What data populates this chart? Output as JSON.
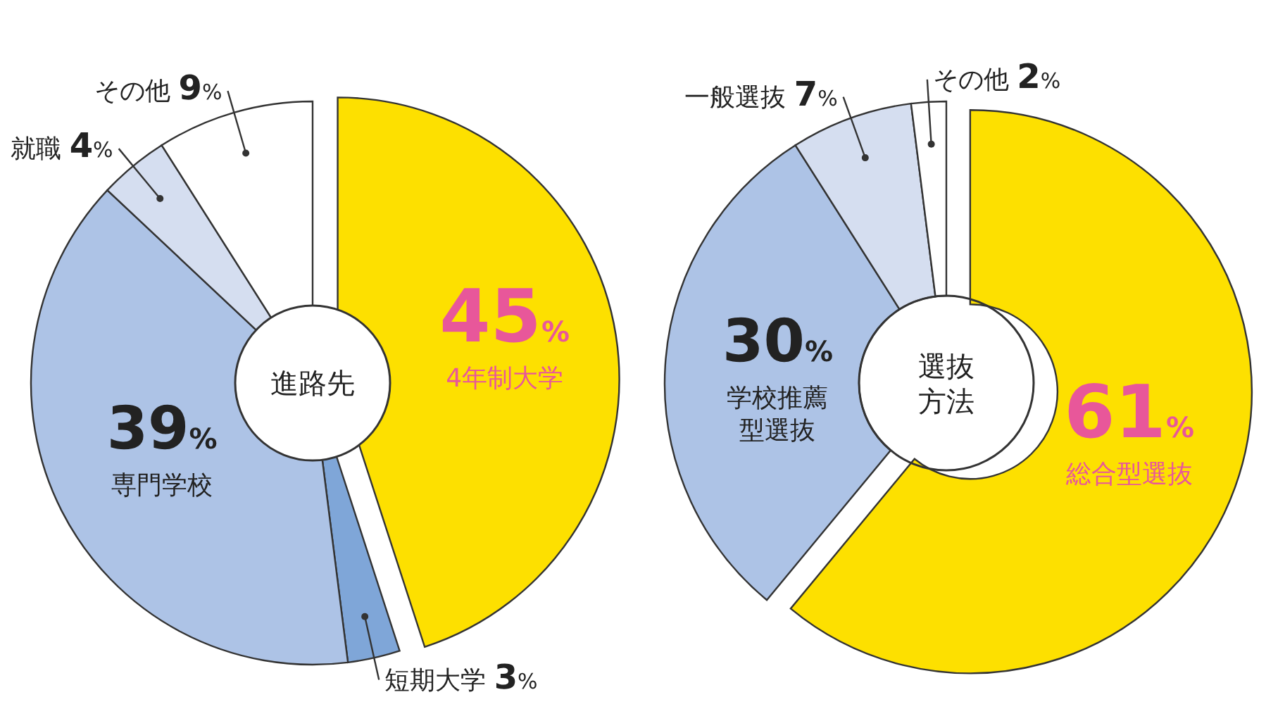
{
  "chart_data": [
    {
      "type": "pie",
      "title": "進路先",
      "categories": [
        "4年制大学",
        "短期大学",
        "専門学校",
        "就職",
        "その他"
      ],
      "values": [
        45,
        3,
        39,
        4,
        9
      ],
      "value_labels": [
        "45%",
        "3%",
        "39%",
        "4%",
        "9%"
      ],
      "colors": [
        "#fde000",
        "#7fa6d8",
        "#adc3e6",
        "#d5def0",
        "#ffffff"
      ]
    },
    {
      "type": "donut",
      "title": "選抜方法",
      "categories": [
        "総合型選抜",
        "学校推薦型選抜",
        "一般選抜",
        "その他"
      ],
      "values": [
        61,
        30,
        7,
        2
      ],
      "value_labels": [
        "61%",
        "30%",
        "7%",
        "2%"
      ],
      "colors": [
        "#fde000",
        "#adc3e6",
        "#d5def0",
        "#ffffff"
      ]
    }
  ]
}
